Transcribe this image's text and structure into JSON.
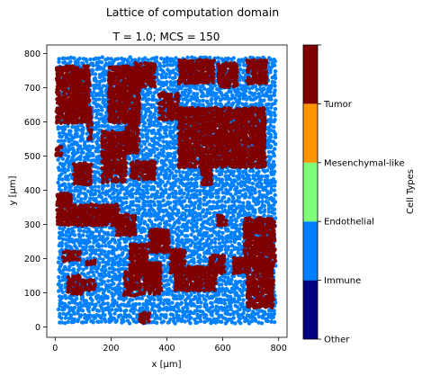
{
  "figure": {
    "suptitle": "Lattice of computation domain"
  },
  "chart_data": [
    {
      "type": "scatter",
      "title": "T = 1.0; MCS = 150",
      "xlabel": "x [μm]",
      "ylabel": "y [μm]",
      "xlim": [
        -30,
        830
      ],
      "ylim": [
        -30,
        825
      ],
      "xticks": [
        0,
        200,
        400,
        600,
        800
      ],
      "yticks": [
        0,
        100,
        200,
        300,
        400,
        500,
        600,
        700,
        800
      ],
      "grid": false,
      "domain": {
        "x": [
          15,
          785
        ],
        "y": [
          15,
          785
        ]
      },
      "series": [
        {
          "name": "Immune",
          "color": "#0080ff",
          "fills_background": true,
          "note_points": "dense lattice of points filling the domain"
        },
        {
          "name": "Tumor",
          "color": "#800000",
          "regions": [
            {
              "x": [
                8,
                125
              ],
              "y": [
                600,
                765
              ]
            },
            {
              "x": [
                120,
                135
              ],
              "y": [
                550,
                640
              ]
            },
            {
              "x": [
                195,
                300
              ],
              "y": [
                600,
                760
              ]
            },
            {
              "x": [
                290,
                360
              ],
              "y": [
                705,
                770
              ]
            },
            {
              "x": [
                375,
                440
              ],
              "y": [
                610,
                685
              ]
            },
            {
              "x": [
                445,
                570
              ],
              "y": [
                715,
                780
              ]
            },
            {
              "x": [
                585,
                650
              ],
              "y": [
                705,
                770
              ]
            },
            {
              "x": [
                690,
                760
              ],
              "y": [
                715,
                780
              ]
            },
            {
              "x": [
                445,
                755
              ],
              "y": [
                470,
                640
              ]
            },
            {
              "x": [
                525,
                560
              ],
              "y": [
                420,
                470
              ]
            },
            {
              "x": [
                170,
                255
              ],
              "y": [
                425,
                575
              ]
            },
            {
              "x": [
                255,
                300
              ],
              "y": [
                510,
                590
              ]
            },
            {
              "x": [
                275,
                360
              ],
              "y": [
                435,
                490
              ]
            },
            {
              "x": [
                5,
                25
              ],
              "y": [
                500,
                525
              ]
            },
            {
              "x": [
                70,
                130
              ],
              "y": [
                420,
                480
              ]
            },
            {
              "x": [
                10,
                65
              ],
              "y": [
                300,
                390
              ]
            },
            {
              "x": [
                65,
                230
              ],
              "y": [
                300,
                360
              ]
            },
            {
              "x": [
                220,
                290
              ],
              "y": [
                270,
                330
              ]
            },
            {
              "x": [
                340,
                410
              ],
              "y": [
                220,
                290
              ]
            },
            {
              "x": [
                270,
                330
              ],
              "y": [
                160,
                240
              ]
            },
            {
              "x": [
                250,
                310
              ],
              "y": [
                95,
                160
              ]
            },
            {
              "x": [
                320,
                380
              ],
              "y": [
                100,
                190
              ]
            },
            {
              "x": [
                30,
                90
              ],
              "y": [
                195,
                225
              ]
            },
            {
              "x": [
                50,
                90
              ],
              "y": [
                100,
                150
              ]
            },
            {
              "x": [
                100,
                140
              ],
              "y": [
                110,
                135
              ]
            },
            {
              "x": [
                115,
                140
              ],
              "y": [
                185,
                200
              ]
            },
            {
              "x": [
                415,
                465
              ],
              "y": [
                160,
                230
              ]
            },
            {
              "x": [
                430,
                580
              ],
              "y": [
                110,
                180
              ]
            },
            {
              "x": [
                555,
                610
              ],
              "y": [
                160,
                210
              ]
            },
            {
              "x": [
                640,
                680
              ],
              "y": [
                160,
                200
              ]
            },
            {
              "x": [
                585,
                610
              ],
              "y": [
                300,
                330
              ]
            },
            {
              "x": [
                680,
                785
              ],
              "y": [
                180,
                320
              ]
            },
            {
              "x": [
                690,
                780
              ],
              "y": [
                60,
                180
              ]
            },
            {
              "x": [
                305,
                340
              ],
              "y": [
                15,
                40
              ]
            }
          ]
        }
      ]
    },
    {
      "type": "colorbar",
      "label": "Cell Types",
      "categories": [
        "Other",
        "Immune",
        "Endothelial",
        "Mesenchymal-like",
        "Tumor",
        ""
      ],
      "colors": [
        "#000080",
        "#0080ff",
        "#7dff7a",
        "#ff9400",
        "#800000"
      ],
      "ticks_at_boundaries": true
    }
  ]
}
